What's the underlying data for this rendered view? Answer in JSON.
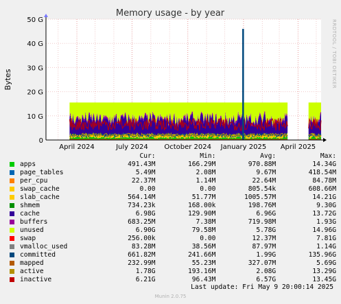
{
  "chart_data": {
    "type": "area",
    "title": "Memory usage - by year",
    "ylabel": "Bytes",
    "side_label": "RRDTOOL / TOBI OETIKER",
    "ylim": [
      0,
      50
    ],
    "y_unit": "G",
    "y_ticks": [
      {
        "value": 0,
        "label": "0"
      },
      {
        "value": 10,
        "label": "10 G"
      },
      {
        "value": 20,
        "label": "20 G"
      },
      {
        "value": 30,
        "label": "30 G"
      },
      {
        "value": 40,
        "label": "40 G"
      },
      {
        "value": 50,
        "label": "50 G"
      }
    ],
    "x_range": [
      "2024-02-10",
      "2025-05-09"
    ],
    "x_ticks": [
      {
        "date": "2024-04-01",
        "label": "April 2024"
      },
      {
        "date": "2024-07-01",
        "label": "July 2024"
      },
      {
        "date": "2024-10-01",
        "label": "October 2024"
      },
      {
        "date": "2025-01-01",
        "label": "January 2025"
      },
      {
        "date": "2025-04-01",
        "label": "April 2025"
      }
    ],
    "data_gaps": [
      [
        "2025-03-15",
        "2025-04-17"
      ]
    ],
    "total_level_g": 15.5,
    "committed_spike": {
      "date": "2024-12-31",
      "value_g": 46
    },
    "series": [
      {
        "name": "apps",
        "color": "#00cc00",
        "approx_level_g": 1.0
      },
      {
        "name": "page_tables",
        "color": "#0066b3",
        "approx_level_g": 0.01
      },
      {
        "name": "per_cpu",
        "color": "#ff8000",
        "approx_level_g": 0.02
      },
      {
        "name": "swap_cache",
        "color": "#ffcc00",
        "approx_level_g": 0.0
      },
      {
        "name": "slab_cache",
        "color": "#ffcc00",
        "approx_level_g": 1.0
      },
      {
        "name": "shmem",
        "color": "#008f00",
        "approx_level_g": 0.2
      },
      {
        "name": "cache",
        "color": "#330099",
        "approx_level_g": 6.0
      },
      {
        "name": "buffers",
        "color": "#990099",
        "approx_level_g": 0.7
      },
      {
        "name": "unused",
        "color": "#ccff00",
        "approx_level_g": 6.0
      },
      {
        "name": "swap",
        "color": "#ff0000",
        "approx_level_g": 0.01
      },
      {
        "name": "vmalloc_used",
        "color": "#808080",
        "approx_level_g": 0.08
      },
      {
        "name": "committed",
        "color": "#00487d",
        "approx_level_g": 2.0
      },
      {
        "name": "mapped",
        "color": "#b35a00",
        "approx_level_g": 0.33
      },
      {
        "name": "active",
        "color": "#b38f00",
        "approx_level_g": 2.0
      },
      {
        "name": "inactive",
        "color": "#c00000",
        "approx_level_g": 6.5
      }
    ]
  },
  "legend": {
    "headers": {
      "cur": "Cur:",
      "min": "Min:",
      "avg": "Avg:",
      "max": "Max:"
    },
    "rows": [
      {
        "name": "apps",
        "color": "#00cc00",
        "cur": "491.43M",
        "min": "166.29M",
        "avg": "970.88M",
        "max": "14.34G"
      },
      {
        "name": "page_tables",
        "color": "#0066b3",
        "cur": "5.49M",
        "min": "2.08M",
        "avg": "9.67M",
        "max": "418.54M"
      },
      {
        "name": "per_cpu",
        "color": "#ff8000",
        "cur": "22.37M",
        "min": "1.14M",
        "avg": "22.64M",
        "max": "84.78M"
      },
      {
        "name": "swap_cache",
        "color": "#ffcc00",
        "cur": "0.00",
        "min": "0.00",
        "avg": "805.54k",
        "max": "608.66M"
      },
      {
        "name": "slab_cache",
        "color": "#ffcc00",
        "cur": "564.14M",
        "min": "51.77M",
        "avg": "1005.57M",
        "max": "14.21G"
      },
      {
        "name": "shmem",
        "color": "#008f00",
        "cur": "734.23k",
        "min": "168.00k",
        "avg": "198.76M",
        "max": "9.30G"
      },
      {
        "name": "cache",
        "color": "#330099",
        "cur": "6.98G",
        "min": "129.90M",
        "avg": "6.96G",
        "max": "13.72G"
      },
      {
        "name": "buffers",
        "color": "#990099",
        "cur": "683.25M",
        "min": "7.38M",
        "avg": "719.98M",
        "max": "1.93G"
      },
      {
        "name": "unused",
        "color": "#ccff00",
        "cur": "6.90G",
        "min": "79.58M",
        "avg": "5.78G",
        "max": "14.96G"
      },
      {
        "name": "swap",
        "color": "#ff0000",
        "cur": "256.00k",
        "min": "0.00",
        "avg": "12.37M",
        "max": "7.81G"
      },
      {
        "name": "vmalloc_used",
        "color": "#808080",
        "cur": "83.28M",
        "min": "38.56M",
        "avg": "87.97M",
        "max": "1.14G"
      },
      {
        "name": "committed",
        "color": "#00487d",
        "cur": "661.82M",
        "min": "241.66M",
        "avg": "1.99G",
        "max": "135.96G"
      },
      {
        "name": "mapped",
        "color": "#b35a00",
        "cur": "232.99M",
        "min": "55.23M",
        "avg": "327.07M",
        "max": "5.69G"
      },
      {
        "name": "active",
        "color": "#b38f00",
        "cur": "1.78G",
        "min": "193.16M",
        "avg": "2.08G",
        "max": "13.29G"
      },
      {
        "name": "inactive",
        "color": "#c00000",
        "cur": "6.21G",
        "min": "96.43M",
        "avg": "6.57G",
        "max": "13.45G"
      }
    ]
  },
  "last_update": "Last update: Fri May  9 20:00:14 2025",
  "footer": "Munin 2.0.75"
}
